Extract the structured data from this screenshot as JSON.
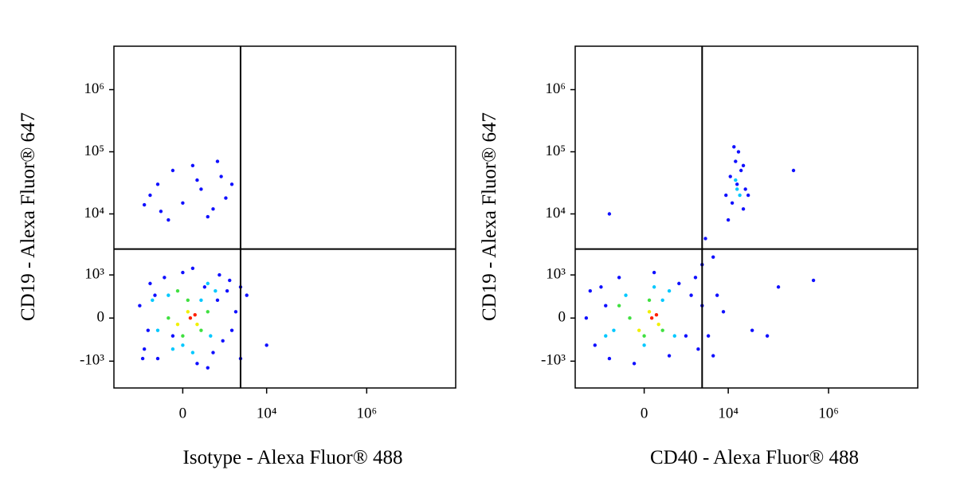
{
  "chart_data": [
    {
      "type": "scatter",
      "scale": "biexponential",
      "x_label": "Isotype - Alexa Fluor® 488",
      "y_label": "CD19 - Alexa Fluor® 647",
      "xlim": [
        -5000,
        60000000
      ],
      "ylim": [
        -2800,
        5000000
      ],
      "xticks": [
        0,
        {
          "value": 10000,
          "label": "10⁴"
        },
        {
          "value": 1000000,
          "label": "10⁶"
        }
      ],
      "yticks": [
        {
          "value": -1000,
          "label": "-10³"
        },
        0,
        {
          "value": 1000,
          "label": "10³"
        },
        {
          "value": 10000,
          "label": "10⁴"
        },
        {
          "value": 100000,
          "label": "10⁵"
        },
        {
          "value": 1000000,
          "label": "10⁶"
        }
      ],
      "gates": {
        "x": 3000,
        "y": 2700
      },
      "series": [
        {
          "color": "#1010ff",
          "x": [
            -1500,
            -1200,
            -900,
            -600,
            -400,
            -200,
            0,
            300,
            500,
            800,
            1000,
            1300,
            1600,
            2000,
            1100,
            -1000,
            -700,
            600,
            200,
            1800,
            -1300,
            2400,
            3000,
            4000,
            -300,
            0,
            400,
            -600,
            800,
            1200,
            -900,
            200,
            1500,
            -200,
            600,
            -1200,
            1000,
            2000,
            -500,
            300,
            10000,
            3000
          ],
          "values": [
            200,
            -600,
            700,
            -900,
            900,
            -300,
            1100,
            -1100,
            600,
            -700,
            300,
            -400,
            500,
            -200,
            1000,
            -200,
            400,
            -1300,
            1300,
            800,
            -900,
            100,
            -900,
            400,
            8000,
            15000,
            25000,
            30000,
            12000,
            40000,
            20000,
            60000,
            18000,
            50000,
            9000,
            14000,
            70000,
            30000,
            11000,
            35000,
            -500,
            600
          ]
        },
        {
          "color": "#00c8ff",
          "x": [
            -600,
            -300,
            0,
            400,
            700,
            900,
            -800,
            200,
            600,
            -200
          ],
          "values": [
            -200,
            400,
            -500,
            300,
            -300,
            500,
            300,
            -700,
            700,
            -600
          ]
        },
        {
          "color": "#40e040",
          "x": [
            -300,
            100,
            400,
            0,
            600,
            -100
          ],
          "values": [
            0,
            300,
            -200,
            -300,
            100,
            500
          ]
        },
        {
          "color": "#f0f000",
          "x": [
            100,
            300,
            -100
          ],
          "values": [
            100,
            -100,
            -100
          ]
        },
        {
          "color": "#ff2000",
          "x": [
            150,
            250
          ],
          "values": [
            0,
            50
          ]
        }
      ]
    },
    {
      "type": "scatter",
      "scale": "biexponential",
      "x_label": "CD40 - Alexa Fluor® 488",
      "y_label": "CD19 - Alexa Fluor® 647",
      "xlim": [
        -5000,
        60000000
      ],
      "ylim": [
        -2800,
        5000000
      ],
      "xticks": [
        0,
        {
          "value": 10000,
          "label": "10⁴"
        },
        {
          "value": 1000000,
          "label": "10⁶"
        }
      ],
      "yticks": [
        {
          "value": -1000,
          "label": "-10³"
        },
        0,
        {
          "value": 1000,
          "label": "10³"
        },
        {
          "value": 10000,
          "label": "10⁴"
        },
        {
          "value": 100000,
          "label": "10⁵"
        },
        {
          "value": 1000000,
          "label": "10⁶"
        }
      ],
      "gates": {
        "x": 3000,
        "y": 2700
      },
      "series": [
        {
          "color": "#1010ff",
          "x": [
            -3000,
            -2000,
            -1500,
            -1000,
            -600,
            -200,
            200,
            600,
            1000,
            1400,
            1800,
            2500,
            -2500,
            -1200,
            3000,
            4000,
            6000,
            5000,
            8000,
            2200,
            3000,
            3500,
            5000,
            10000,
            12000,
            15000,
            18000,
            20000,
            14000,
            11000,
            22000,
            16000,
            25000,
            13000,
            9000,
            20000,
            200000,
            500000,
            30000,
            60000,
            100000,
            -1000
          ],
          "values": [
            0,
            -500,
            600,
            -900,
            900,
            -1100,
            1100,
            -800,
            700,
            -300,
            400,
            -600,
            500,
            200,
            200,
            -300,
            400,
            -800,
            100,
            900,
            1500,
            4000,
            2000,
            8000,
            15000,
            30000,
            50000,
            12000,
            70000,
            40000,
            25000,
            100000,
            20000,
            120000,
            20000,
            60000,
            50000,
            800,
            -200,
            -300,
            600,
            10000
          ]
        },
        {
          "color": "#00c8ff",
          "x": [
            -800,
            -400,
            0,
            400,
            800,
            -1200,
            200,
            600,
            15000,
            17000,
            14000
          ],
          "values": [
            -200,
            400,
            -500,
            300,
            -300,
            -300,
            600,
            500,
            25000,
            20000,
            35000
          ]
        },
        {
          "color": "#40e040",
          "x": [
            -300,
            100,
            400,
            0,
            -600
          ],
          "values": [
            0,
            300,
            -200,
            -300,
            200
          ]
        },
        {
          "color": "#f0f000",
          "x": [
            100,
            300,
            -100
          ],
          "values": [
            100,
            -100,
            -200
          ]
        },
        {
          "color": "#ff2000",
          "x": [
            150,
            250
          ],
          "values": [
            0,
            50
          ]
        }
      ]
    }
  ]
}
